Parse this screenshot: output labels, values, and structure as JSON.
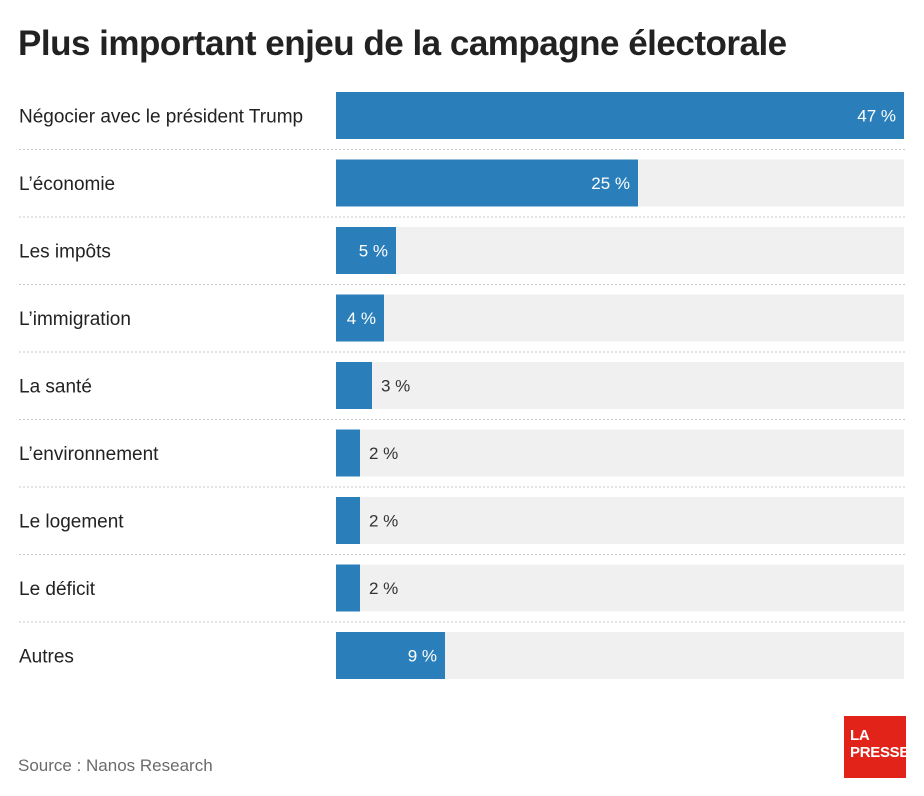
{
  "chart_data": {
    "type": "bar",
    "orientation": "horizontal",
    "title": "Plus important enjeu de la campagne électorale",
    "categories": [
      "Négocier avec le président Trump",
      "L’économie",
      "Les impôts",
      "L’immigration",
      "La santé",
      "L’environnement",
      "Le logement",
      "Le déficit",
      "Autres"
    ],
    "values": [
      47,
      25,
      5,
      4,
      3,
      2,
      2,
      2,
      9
    ],
    "value_labels": [
      "47 %",
      "25 %",
      "5 %",
      "4 %",
      "3 %",
      "2 %",
      "2 %",
      "2 %",
      "9 %"
    ],
    "xlim": [
      0,
      47
    ],
    "bar_color": "#2a7fba",
    "track_color": "#f0f0f0",
    "grid": false
  },
  "source": "Source : Nanos Research",
  "logo": {
    "line1": "LA",
    "line2": "PRESSE",
    "color": "#e2231a"
  }
}
